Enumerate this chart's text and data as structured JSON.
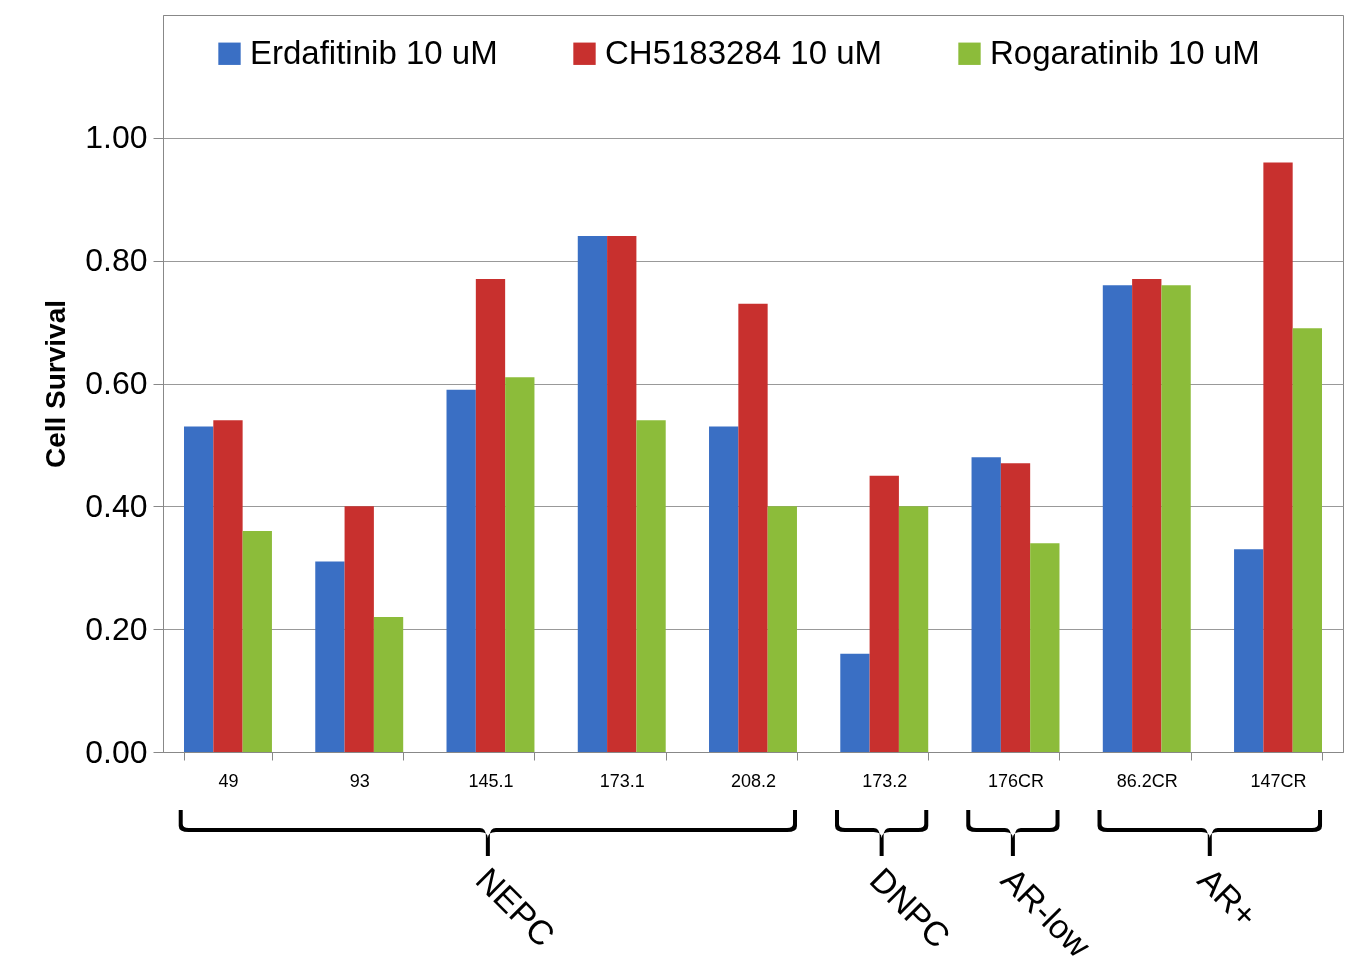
{
  "chart_data": {
    "type": "bar",
    "ylabel": "Cell Survival",
    "categories": [
      "49",
      "93",
      "145.1",
      "173.1",
      "208.2",
      "173.2",
      "176CR",
      "86.2CR",
      "147CR"
    ],
    "series": [
      {
        "name": "Erdafitinib 10 uM",
        "color": "#3a6fc4",
        "values": [
          0.53,
          0.31,
          0.59,
          0.84,
          0.53,
          0.16,
          0.48,
          0.76,
          0.33
        ]
      },
      {
        "name": "CH5183284 10 uM",
        "color": "#c8302e",
        "values": [
          0.54,
          0.4,
          0.77,
          0.84,
          0.73,
          0.45,
          0.47,
          0.77,
          0.96
        ]
      },
      {
        "name": "Rogaratinib 10 uM",
        "color": "#8cbc3a",
        "values": [
          0.36,
          0.22,
          0.61,
          0.54,
          0.4,
          0.4,
          0.34,
          0.76,
          0.69
        ]
      }
    ],
    "ylim": [
      0,
      1.2
    ],
    "yticks": [
      {
        "value": 0,
        "label": "0.00"
      },
      {
        "value": 0.2,
        "label": "0.20"
      },
      {
        "value": 0.4,
        "label": "0.40"
      },
      {
        "value": 0.6,
        "label": "0.60"
      },
      {
        "value": 0.8,
        "label": "0.80"
      },
      {
        "value": 1,
        "label": "1.00"
      }
    ],
    "grid": "y",
    "legend": "top",
    "annotations": [
      "NEPC",
      "DNPC",
      "AR-low",
      "AR+"
    ]
  }
}
